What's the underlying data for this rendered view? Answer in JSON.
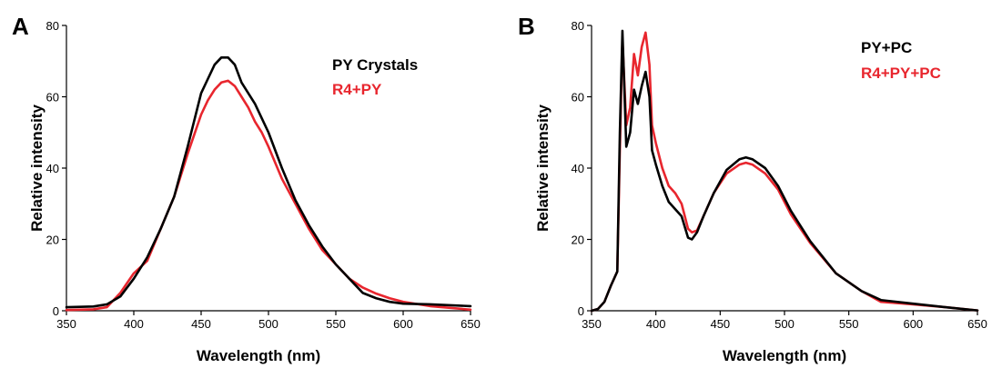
{
  "colors": {
    "black_series": "#000000",
    "red_series": "#e8262e"
  },
  "chart_data": [
    {
      "type": "line",
      "panel_label": "A",
      "xlabel": "Wavelength (nm)",
      "ylabel": "Relative intensity",
      "xlim": [
        350,
        650
      ],
      "ylim": [
        0,
        80
      ],
      "xticks": [
        350,
        400,
        450,
        500,
        550,
        600,
        650
      ],
      "yticks": [
        0,
        20,
        40,
        60,
        80
      ],
      "grid": false,
      "legend_placement": "top-right",
      "series": [
        {
          "name": "PY Crystals",
          "color": "#000000",
          "x": [
            350,
            370,
            380,
            390,
            400,
            410,
            420,
            430,
            440,
            450,
            455,
            460,
            465,
            470,
            475,
            480,
            485,
            490,
            495,
            500,
            510,
            520,
            530,
            540,
            550,
            560,
            570,
            580,
            590,
            600,
            620,
            650
          ],
          "y": [
            1,
            1.2,
            1.8,
            4,
            9,
            15,
            23,
            32,
            46,
            61,
            65,
            69,
            71,
            71,
            69,
            64,
            61,
            58,
            54,
            50,
            40,
            31,
            24,
            18,
            13,
            9,
            5,
            3.5,
            2.5,
            2,
            1.8,
            1.3
          ]
        },
        {
          "name": "R4+PY",
          "color": "#e8262e",
          "x": [
            350,
            370,
            380,
            390,
            400,
            410,
            420,
            430,
            440,
            450,
            455,
            460,
            465,
            470,
            475,
            480,
            485,
            490,
            495,
            500,
            510,
            520,
            530,
            540,
            550,
            560,
            570,
            580,
            590,
            600,
            620,
            650
          ],
          "y": [
            0.2,
            0.4,
            1,
            5,
            10.5,
            14,
            23,
            32,
            44,
            55,
            59,
            62,
            64,
            64.5,
            63,
            60,
            57,
            53,
            50,
            46,
            37,
            30,
            23,
            17,
            13,
            9,
            6.5,
            4.8,
            3.5,
            2.5,
            1.3,
            0.3
          ]
        }
      ]
    },
    {
      "type": "line",
      "panel_label": "B",
      "xlabel": "Wavelength (nm)",
      "ylabel": "Relative intensity",
      "xlim": [
        350,
        650
      ],
      "ylim": [
        0,
        80
      ],
      "xticks": [
        350,
        400,
        450,
        500,
        550,
        600,
        650
      ],
      "yticks": [
        0,
        20,
        40,
        60,
        80
      ],
      "grid": false,
      "legend_placement": "top-right",
      "series": [
        {
          "name": "PY+PC",
          "color": "#000000",
          "x": [
            350,
            355,
            360,
            365,
            370,
            372,
            374,
            377,
            380,
            383,
            386,
            389,
            392,
            395,
            397,
            400,
            405,
            410,
            415,
            420,
            425,
            428,
            432,
            437,
            445,
            455,
            465,
            470,
            475,
            485,
            495,
            505,
            520,
            540,
            560,
            575,
            600,
            625,
            650
          ],
          "y": [
            0,
            0.5,
            2.5,
            7,
            11,
            50,
            78.5,
            46,
            50,
            62,
            58,
            63,
            67,
            60,
            45,
            41,
            35,
            30.5,
            28.5,
            26.5,
            20.5,
            20,
            22,
            26.5,
            33,
            39.5,
            42.5,
            43,
            42.5,
            40,
            35,
            28,
            19.5,
            10.5,
            5.5,
            3,
            2,
            1,
            0.1
          ]
        },
        {
          "name": "R4+PY+PC",
          "color": "#e8262e",
          "x": [
            350,
            355,
            360,
            365,
            370,
            372,
            374,
            377,
            380,
            383,
            386,
            389,
            392,
            395,
            397,
            400,
            405,
            410,
            415,
            420,
            425,
            428,
            432,
            437,
            445,
            455,
            465,
            470,
            475,
            485,
            495,
            505,
            520,
            540,
            560,
            575,
            600,
            625,
            650
          ],
          "y": [
            0,
            0.5,
            2.5,
            7,
            11,
            45,
            76,
            52,
            57,
            72,
            66,
            74,
            78,
            69,
            52,
            47,
            40,
            35,
            33,
            30,
            23,
            22,
            22.5,
            26.5,
            33,
            38.5,
            41,
            41.5,
            41,
            38.5,
            34,
            27,
            19,
            10.5,
            5.5,
            2.5,
            1.8,
            1,
            0.1
          ]
        }
      ]
    }
  ]
}
